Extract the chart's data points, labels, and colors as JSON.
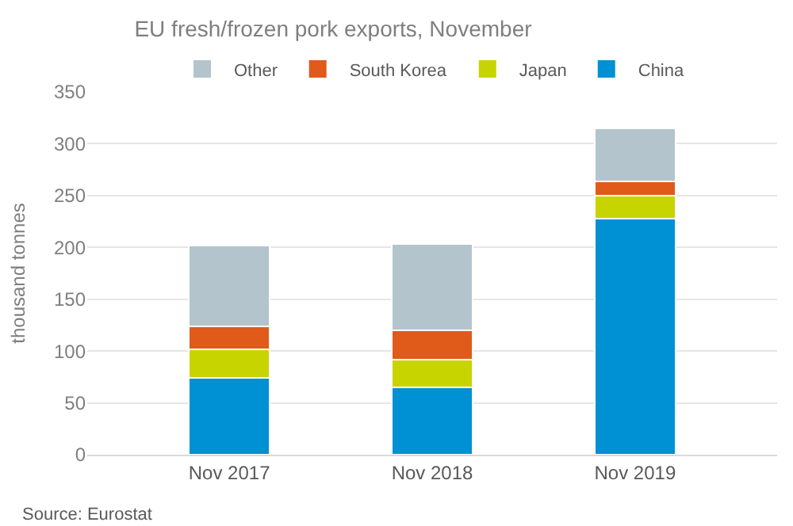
{
  "chart_data": {
    "type": "bar",
    "title": "EU fresh/frozen pork exports, November",
    "ylabel": "thousand tonnes",
    "stacked": true,
    "categories": [
      "Nov 2017",
      "Nov 2018",
      "Nov 2019"
    ],
    "series": [
      {
        "name": "China",
        "color": "#0090d4",
        "values": [
          74,
          65,
          228
        ]
      },
      {
        "name": "Japan",
        "color": "#c8d400",
        "values": [
          28,
          27,
          22
        ]
      },
      {
        "name": "South Korea",
        "color": "#e05a1a",
        "values": [
          22,
          28,
          14
        ]
      },
      {
        "name": "Other",
        "color": "#b3c4cc",
        "values": [
          78,
          83,
          51
        ]
      }
    ],
    "ylim": [
      0,
      350
    ],
    "yticks": [
      0,
      50,
      100,
      150,
      200,
      250,
      300,
      350
    ],
    "grid": "y",
    "legend": "top",
    "annotations": [
      "Source: Eurostat"
    ]
  }
}
